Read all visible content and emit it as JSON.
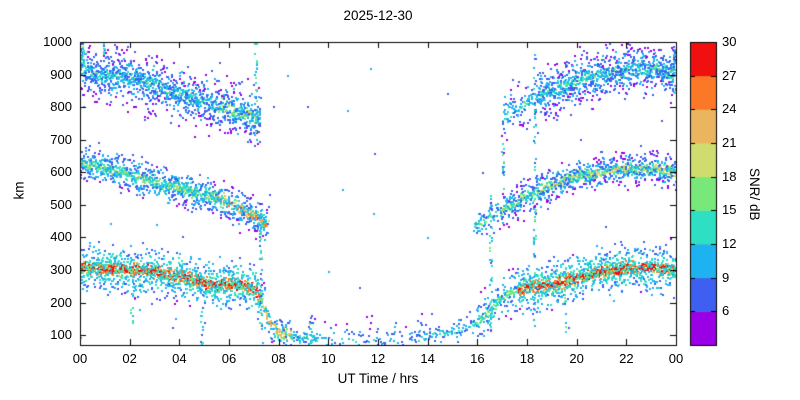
{
  "chart_data": {
    "type": "heatmap",
    "title": "2025-12-30",
    "xlabel": "UT Time / hrs",
    "ylabel": "km",
    "xlim": [
      0,
      24
    ],
    "ylim": [
      70,
      1000
    ],
    "xticks": [
      {
        "v": 0,
        "label": "00"
      },
      {
        "v": 2,
        "label": "02"
      },
      {
        "v": 4,
        "label": "04"
      },
      {
        "v": 6,
        "label": "06"
      },
      {
        "v": 8,
        "label": "08"
      },
      {
        "v": 10,
        "label": "10"
      },
      {
        "v": 12,
        "label": "12"
      },
      {
        "v": 14,
        "label": "14"
      },
      {
        "v": 16,
        "label": "16"
      },
      {
        "v": 18,
        "label": "18"
      },
      {
        "v": 20,
        "label": "20"
      },
      {
        "v": 22,
        "label": "22"
      },
      {
        "v": 24,
        "label": "00"
      }
    ],
    "yticks": [
      100,
      200,
      300,
      400,
      500,
      600,
      700,
      800,
      900,
      1000
    ],
    "colorbar": {
      "label": "SNR/ dB",
      "min": 3,
      "max": 30,
      "ticks": [
        6,
        9,
        12,
        15,
        18,
        21,
        24,
        27,
        30
      ],
      "colors": [
        "#9a00e6",
        "#3f5ff0",
        "#1fb2f0",
        "#2edfc4",
        "#79e87b",
        "#cfdc6e",
        "#eab55e",
        "#fa7828",
        "#f01010"
      ]
    },
    "layers": [
      {
        "name": "lower-trace-core",
        "sigma": 9,
        "falloff": 2,
        "seed": 11,
        "waypoints": [
          [
            0,
            310
          ],
          [
            1,
            305
          ],
          [
            2,
            300
          ],
          [
            3,
            294
          ],
          [
            4,
            280
          ],
          [
            5,
            262
          ],
          [
            5.6,
            252
          ],
          [
            6.1,
            257
          ],
          [
            6.6,
            250
          ],
          [
            7,
            245
          ],
          [
            7.3,
            205
          ],
          [
            7.6,
            148
          ],
          [
            8,
            112
          ],
          [
            8.5,
            96
          ],
          [
            9.5,
            88
          ],
          [
            11,
            83
          ],
          [
            12.5,
            83
          ],
          [
            13.5,
            90
          ],
          [
            14.3,
            100
          ],
          [
            15,
            110
          ],
          [
            15.6,
            122
          ],
          [
            16,
            138
          ],
          [
            16.5,
            175
          ],
          [
            17,
            215
          ],
          [
            17.5,
            232
          ],
          [
            18,
            245
          ],
          [
            19,
            257
          ],
          [
            20,
            274
          ],
          [
            21,
            294
          ],
          [
            22,
            305
          ],
          [
            23,
            308
          ],
          [
            24,
            300
          ]
        ],
        "segments": [
          [
            0,
            7.25,
            4,
            29
          ],
          [
            7.25,
            8.5,
            2.5,
            22
          ],
          [
            8.5,
            9.6,
            1.5,
            13
          ],
          [
            9.6,
            13.5,
            0.35,
            11
          ],
          [
            13.5,
            16,
            1.1,
            12
          ],
          [
            16,
            17.7,
            1.8,
            16
          ],
          [
            17.7,
            24,
            4,
            29
          ]
        ]
      },
      {
        "name": "lower-trace-halo",
        "waypoints_ref": "lower-trace-core",
        "sigma": 34,
        "falloff": 2.5,
        "seed": 12,
        "segments": [
          [
            0,
            7.25,
            5,
            14
          ],
          [
            7.25,
            8.5,
            2.5,
            12
          ],
          [
            8.5,
            16,
            0.7,
            10
          ],
          [
            16,
            17.7,
            2.5,
            12
          ],
          [
            17.7,
            24,
            5,
            14
          ]
        ]
      },
      {
        "name": "middle-trace-am-core",
        "sigma": 8,
        "falloff": 2,
        "seed": 21,
        "waypoints": [
          [
            0,
            628
          ],
          [
            0.7,
            618
          ],
          [
            1.5,
            603
          ],
          [
            2.3,
            585
          ],
          [
            3,
            570
          ],
          [
            3.8,
            553
          ],
          [
            4.5,
            540
          ],
          [
            5,
            531
          ],
          [
            5.5,
            521
          ],
          [
            6,
            506
          ],
          [
            6.4,
            490
          ],
          [
            6.8,
            474
          ],
          [
            7.2,
            456
          ],
          [
            7.6,
            435
          ]
        ],
        "segments": [
          [
            0,
            5.5,
            2.5,
            18
          ],
          [
            5.5,
            7.6,
            2.5,
            24
          ]
        ]
      },
      {
        "name": "middle-trace-am-halo",
        "waypoints_ref": "middle-trace-am-core",
        "sigma": 27,
        "falloff": 2.5,
        "seed": 22,
        "segments": [
          [
            0,
            7.6,
            4,
            12
          ]
        ]
      },
      {
        "name": "middle-trace-pm-core",
        "sigma": 8,
        "falloff": 2,
        "seed": 23,
        "waypoints": [
          [
            15.9,
            428
          ],
          [
            16.3,
            452
          ],
          [
            16.7,
            472
          ],
          [
            17.1,
            490
          ],
          [
            17.6,
            508
          ],
          [
            18,
            528
          ],
          [
            18.6,
            550
          ],
          [
            19.2,
            566
          ],
          [
            19.8,
            582
          ],
          [
            20.4,
            594
          ],
          [
            21,
            602
          ],
          [
            21.6,
            608
          ],
          [
            22.2,
            611
          ],
          [
            22.8,
            612
          ],
          [
            23.4,
            608
          ],
          [
            24,
            604
          ]
        ],
        "segments": [
          [
            15.9,
            17,
            1.2,
            16
          ],
          [
            17,
            19,
            2,
            18
          ],
          [
            19,
            24,
            3,
            20
          ]
        ]
      },
      {
        "name": "middle-trace-pm-halo",
        "waypoints_ref": "middle-trace-pm-core",
        "sigma": 26,
        "falloff": 2.5,
        "seed": 24,
        "segments": [
          [
            15.9,
            17,
            1.5,
            11
          ],
          [
            17,
            24,
            3.5,
            11
          ]
        ]
      },
      {
        "name": "upper-trace-am-core",
        "sigma": 12,
        "falloff": 2,
        "seed": 31,
        "waypoints": [
          [
            0,
            915
          ],
          [
            0.8,
            903
          ],
          [
            1.6,
            893
          ],
          [
            2.4,
            884
          ],
          [
            3,
            868
          ],
          [
            3.6,
            850
          ],
          [
            4.2,
            835
          ],
          [
            4.8,
            820
          ],
          [
            5.4,
            806
          ],
          [
            6,
            794
          ],
          [
            6.6,
            780
          ],
          [
            7.2,
            764
          ]
        ],
        "segments": [
          [
            0,
            5.5,
            2.5,
            14
          ],
          [
            5.5,
            7.3,
            2.5,
            18
          ]
        ]
      },
      {
        "name": "upper-trace-am-halo",
        "waypoints_ref": "upper-trace-am-core",
        "sigma": 42,
        "falloff": 2,
        "seed": 32,
        "segments": [
          [
            0,
            7.3,
            5,
            10
          ]
        ]
      },
      {
        "name": "upper-trace-pm-core",
        "sigma": 12,
        "falloff": 2,
        "seed": 33,
        "waypoints": [
          [
            17,
            762
          ],
          [
            17.6,
            792
          ],
          [
            18.2,
            822
          ],
          [
            18.8,
            845
          ],
          [
            19.4,
            862
          ],
          [
            20,
            880
          ],
          [
            20.6,
            892
          ],
          [
            21.2,
            902
          ],
          [
            21.8,
            912
          ],
          [
            22.4,
            917
          ],
          [
            23,
            915
          ],
          [
            23.5,
            912
          ],
          [
            24,
            908
          ]
        ],
        "segments": [
          [
            17,
            18.5,
            1.2,
            13
          ],
          [
            18.5,
            24,
            2.5,
            15
          ]
        ]
      },
      {
        "name": "upper-trace-pm-halo",
        "waypoints_ref": "upper-trace-pm-core",
        "sigma": 40,
        "falloff": 2,
        "seed": 34,
        "segments": [
          [
            17,
            18.5,
            2,
            10
          ],
          [
            18.5,
            24,
            5,
            10
          ]
        ]
      }
    ],
    "events": [
      {
        "t": 0.12,
        "y0": 930,
        "y1": 1005,
        "n": 22
      },
      {
        "t": 1.0,
        "y0": 960,
        "y1": 1005,
        "n": 10
      },
      {
        "t": 2.1,
        "y0": 90,
        "y1": 260,
        "n": 10
      },
      {
        "t": 4.9,
        "y0": 70,
        "y1": 240,
        "n": 10
      },
      {
        "t": 7.1,
        "y0": 690,
        "y1": 1005,
        "n": 26
      },
      {
        "t": 7.3,
        "y0": 120,
        "y1": 470,
        "n": 40
      },
      {
        "t": 9.3,
        "y0": 70,
        "y1": 180,
        "n": 8
      },
      {
        "t": 16.55,
        "y0": 120,
        "y1": 530,
        "n": 40
      },
      {
        "t": 17.05,
        "y0": 550,
        "y1": 700,
        "n": 14
      },
      {
        "t": 18.32,
        "y0": 100,
        "y1": 1005,
        "n": 55
      },
      {
        "t": 19.55,
        "y0": 100,
        "y1": 260,
        "n": 10
      },
      {
        "t": 23.92,
        "y0": 830,
        "y1": 1005,
        "n": 26
      }
    ],
    "noise": {
      "n": 55,
      "snr": 9
    }
  }
}
